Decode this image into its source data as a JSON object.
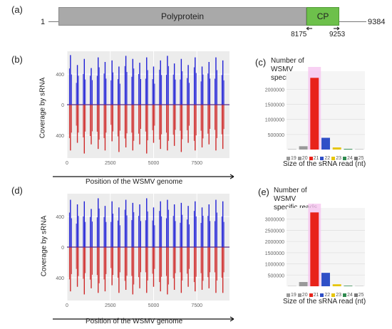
{
  "panels": {
    "a": "(a)",
    "b": "(b)",
    "c": "(c)",
    "d": "(d)",
    "e": "(e)"
  },
  "genome_map": {
    "start": "1",
    "end": "9384",
    "polyprotein_label": "Polyprotein",
    "cp_label": "CP",
    "cp_start": "8175",
    "cp_end": "9253",
    "length": 9384,
    "cp_start_value": 8175,
    "cp_end_value": 9253,
    "colors": {
      "polyprotein": "#a9a9a9",
      "cp": "#6dc04b"
    }
  },
  "coverage_common": {
    "ylabel": "Coverage by sRNA",
    "xlabel": "Position of the WSMV genome",
    "xticks": [
      0,
      2500,
      5000,
      7500
    ],
    "colors": {
      "plus": "#1f1fd6",
      "minus": "#cf2a2a",
      "panel_bg": "#ececec"
    }
  },
  "size_common": {
    "title_lines": [
      "Number of",
      "WSMV",
      "specific reads"
    ],
    "xlabel": "Size of the sRNA read (nt)"
  },
  "chart_data": [
    {
      "panel": "b",
      "type": "bar",
      "xlabel": "Position of the WSMV genome",
      "ylabel": "Coverage by sRNA",
      "xlim": [
        0,
        9384
      ],
      "ylim": [
        -700,
        700
      ],
      "yticks": [
        400,
        0,
        -400
      ],
      "ytick_labels": [
        "400",
        "0",
        "400"
      ],
      "series": [
        {
          "name": "",
          "color": "#1f1fd6",
          "x": [
            200,
            600,
            1000,
            1400,
            1800,
            2200,
            2600,
            3000,
            3400,
            3800,
            4200,
            4600,
            5000,
            5400,
            5800,
            6200,
            6600,
            7000,
            7400,
            7800,
            8200,
            8600,
            9000
          ],
          "values": [
            650,
            520,
            600,
            480,
            620,
            560,
            580,
            500,
            640,
            600,
            550,
            620,
            500,
            580,
            640,
            540,
            600,
            520,
            620,
            500,
            560,
            620,
            580
          ]
        },
        {
          "name": "",
          "color": "#cf2a2a",
          "x": [
            200,
            600,
            1000,
            1400,
            1800,
            2200,
            2600,
            3000,
            3400,
            3800,
            4200,
            4600,
            5000,
            5400,
            5800,
            6200,
            6600,
            7000,
            7400,
            7800,
            8200,
            8600,
            9000
          ],
          "values": [
            -600,
            -500,
            -640,
            -520,
            -580,
            -600,
            -480,
            -620,
            -560,
            -600,
            -520,
            -640,
            -500,
            -580,
            -600,
            -540,
            -620,
            -500,
            -600,
            -560,
            -520,
            -600,
            -580
          ]
        }
      ]
    },
    {
      "panel": "c",
      "type": "bar",
      "title": "Number of WSMV specific reads",
      "xlabel": "Size of the sRNA read (nt)",
      "categories": [
        "19",
        "20",
        "21",
        "22",
        "23",
        "24",
        "25"
      ],
      "values": [
        12000,
        110000,
        2380000,
        390000,
        70000,
        22000,
        8000
      ],
      "colors": [
        "#9a9a9a",
        "#9a9a9a",
        "#e8231a",
        "#2f4fc7",
        "#e6c50b",
        "#2f8a4f",
        "#7a7a7a"
      ],
      "ylim": [
        0,
        2600000
      ],
      "yticks": [
        500000,
        1000000,
        1500000,
        2000000
      ],
      "ytick_labels": [
        "500000",
        "1000000",
        "1500000",
        "2000000"
      ],
      "highlight_category": "21"
    },
    {
      "panel": "d",
      "type": "bar",
      "xlabel": "Position of the WSMV genome",
      "ylabel": "Coverage by sRNA",
      "xlim": [
        0,
        9384
      ],
      "ylim": [
        -700,
        700
      ],
      "yticks": [
        400,
        0,
        -400
      ],
      "ytick_labels": [
        "400",
        "0",
        "400"
      ],
      "series": [
        {
          "name": "",
          "color": "#1f1fd6",
          "x": [
            200,
            600,
            1000,
            1400,
            1800,
            2200,
            2600,
            3000,
            3400,
            3800,
            4200,
            4600,
            5000,
            5400,
            5800,
            6200,
            6600,
            7000,
            7400,
            7800,
            8200,
            8600,
            9000
          ],
          "values": [
            620,
            560,
            600,
            500,
            640,
            540,
            600,
            520,
            620,
            580,
            560,
            640,
            520,
            600,
            620,
            560,
            580,
            540,
            600,
            520,
            560,
            620,
            600
          ]
        },
        {
          "name": "",
          "color": "#cf2a2a",
          "x": [
            200,
            600,
            1000,
            1400,
            1800,
            2200,
            2600,
            3000,
            3400,
            3800,
            4200,
            4600,
            5000,
            5400,
            5800,
            6200,
            6600,
            7000,
            7400,
            7800,
            8200,
            8600,
            9000
          ],
          "values": [
            -580,
            -520,
            -620,
            -540,
            -600,
            -580,
            -500,
            -600,
            -560,
            -620,
            -540,
            -600,
            -520,
            -580,
            -620,
            -560,
            -600,
            -520,
            -580,
            -560,
            -540,
            -600,
            -600
          ]
        }
      ]
    },
    {
      "panel": "e",
      "type": "bar",
      "title": "Number of WSMV specific reads",
      "xlabel": "Size of the sRNA read (nt)",
      "categories": [
        "19",
        "20",
        "21",
        "22",
        "23",
        "24",
        "25"
      ],
      "values": [
        10000,
        190000,
        3300000,
        600000,
        90000,
        25000,
        8000
      ],
      "colors": [
        "#9a9a9a",
        "#9a9a9a",
        "#e8231a",
        "#2f4fc7",
        "#e6c50b",
        "#2f8a4f",
        "#7a7a7a"
      ],
      "ylim": [
        0,
        3500000
      ],
      "yticks": [
        500000,
        1000000,
        1500000,
        2000000,
        2500000,
        3000000
      ],
      "ytick_labels": [
        "500000",
        "1000000",
        "1500000",
        "2000000",
        "2500000",
        "3000000"
      ],
      "highlight_category": "21"
    }
  ]
}
